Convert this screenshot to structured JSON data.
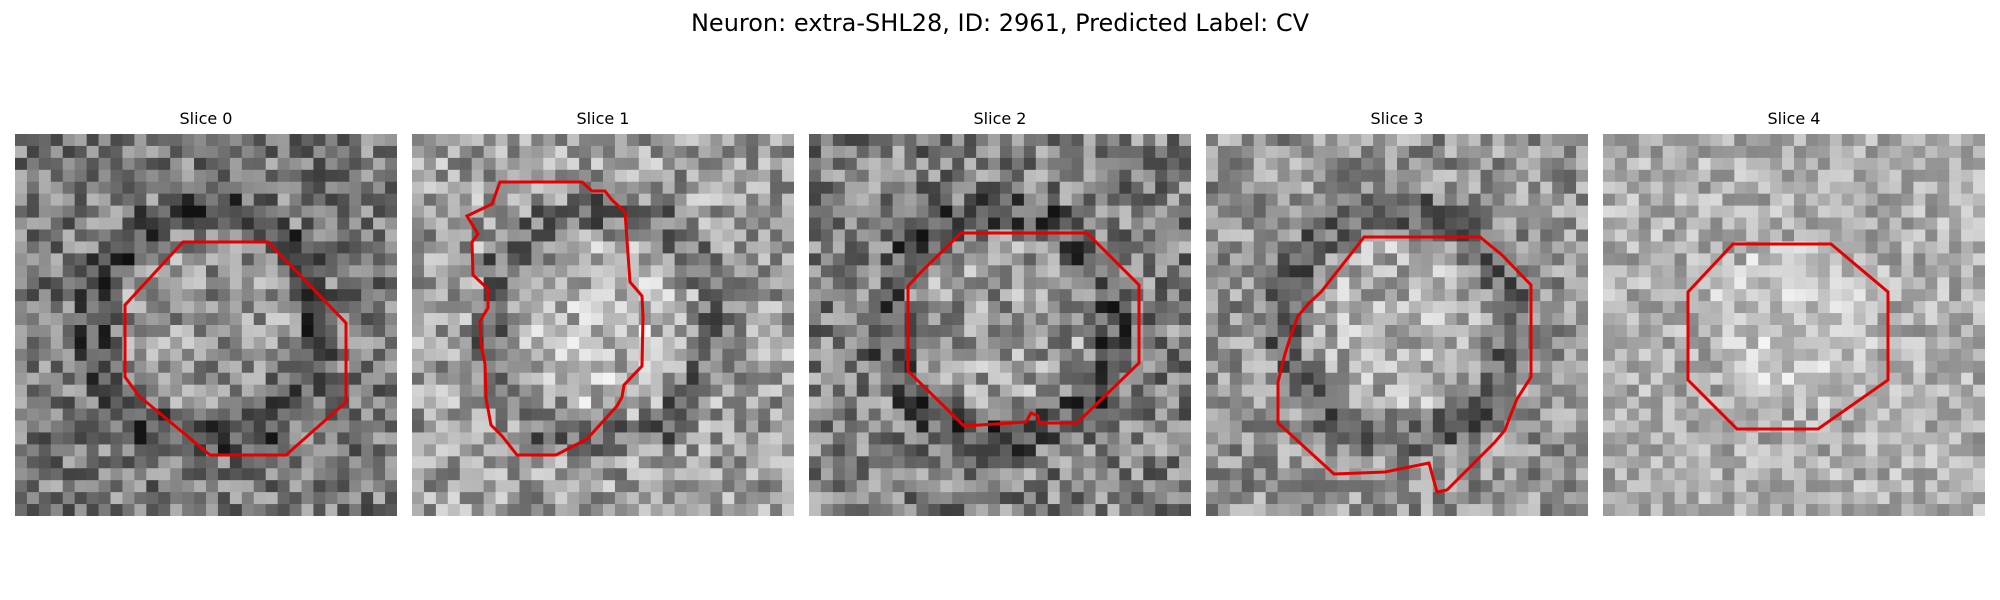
{
  "figure": {
    "title": "Neuron: extra-SHL28, ID: 2961, Predicted Label: CV"
  },
  "slices": [
    {
      "label": "Slice 0",
      "brightness": 0.48,
      "contrast": 0.24,
      "seed": 11,
      "dark_ring": true
    },
    {
      "label": "Slice 1",
      "brightness": 0.62,
      "contrast": 0.24,
      "seed": 23,
      "dark_ring": true
    },
    {
      "label": "Slice 2",
      "brightness": 0.5,
      "contrast": 0.26,
      "seed": 37,
      "dark_ring": true
    },
    {
      "label": "Slice 3",
      "brightness": 0.58,
      "contrast": 0.22,
      "seed": 41,
      "dark_ring": true
    },
    {
      "label": "Slice 4",
      "brightness": 0.68,
      "contrast": 0.18,
      "seed": 53,
      "dark_ring": false
    }
  ],
  "colors": {
    "outline": "#e50000",
    "background": "#ffffff"
  }
}
